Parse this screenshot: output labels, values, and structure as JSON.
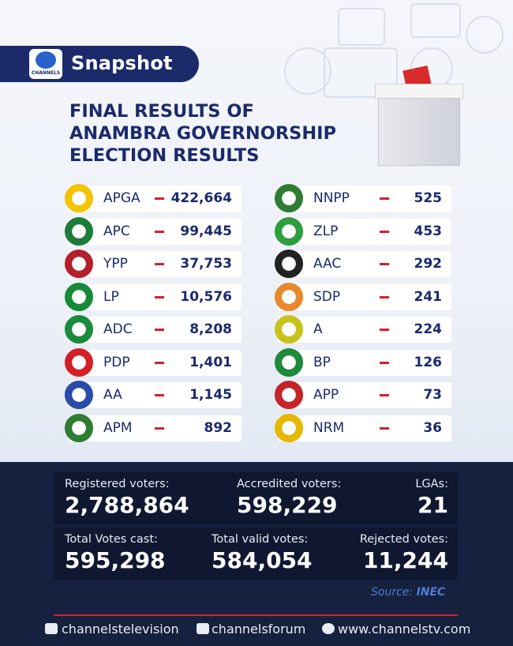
{
  "brand": {
    "name": "Snapshot",
    "logo_text": "CHANNELS"
  },
  "title_lines": [
    "FINAL RESULTS OF",
    "ANAMBRA GOVERNORSHIP",
    "ELECTION RESULTS"
  ],
  "left_parties": [
    {
      "name": "APGA",
      "votes": "422,664",
      "logo_color": "#f4c400"
    },
    {
      "name": "APC",
      "votes": "99,445",
      "logo_color": "#1e7b3a"
    },
    {
      "name": "YPP",
      "votes": "37,753",
      "logo_color": "#b3202a"
    },
    {
      "name": "LP",
      "votes": "10,576",
      "logo_color": "#178a3a"
    },
    {
      "name": "ADC",
      "votes": "8,208",
      "logo_color": "#1a8a3c"
    },
    {
      "name": "PDP",
      "votes": "1,401",
      "logo_color": "#d32027"
    },
    {
      "name": "AA",
      "votes": "1,145",
      "logo_color": "#2a4ba8"
    },
    {
      "name": "APM",
      "votes": "892",
      "logo_color": "#2e7d32"
    }
  ],
  "right_parties": [
    {
      "name": "NNPP",
      "votes": "525",
      "logo_color": "#2e7d32"
    },
    {
      "name": "ZLP",
      "votes": "453",
      "logo_color": "#2e9e3e"
    },
    {
      "name": "AAC",
      "votes": "292",
      "logo_color": "#222222"
    },
    {
      "name": "SDP",
      "votes": "241",
      "logo_color": "#e8892b"
    },
    {
      "name": "A",
      "votes": "224",
      "logo_color": "#c9c21a"
    },
    {
      "name": "BP",
      "votes": "126",
      "logo_color": "#1f8a3a"
    },
    {
      "name": "APP",
      "votes": "73",
      "logo_color": "#c5242b"
    },
    {
      "name": "NRM",
      "votes": "36",
      "logo_color": "#e6b800"
    }
  ],
  "stats_row1": {
    "registered_label": "Registered voters:",
    "registered_value": "2,788,864",
    "accredited_label": "Accredited voters:",
    "accredited_value": "598,229",
    "lgas_label": "LGAs:",
    "lgas_value": "21"
  },
  "stats_row2": {
    "cast_label": "Total Votes cast:",
    "cast_value": "595,298",
    "valid_label": "Total valid votes:",
    "valid_value": "584,054",
    "rejected_label": "Rejected votes:",
    "rejected_value": "11,244"
  },
  "source": {
    "label": "Source:",
    "value": "INEC"
  },
  "social": {
    "youtube": "channelstelevision",
    "facebook": "channelsforum",
    "web": "www.channelstv.com"
  },
  "colors": {
    "navy": "#1b2a6b",
    "accent_red": "#d3202a",
    "bottom_bg": "#16213f"
  }
}
